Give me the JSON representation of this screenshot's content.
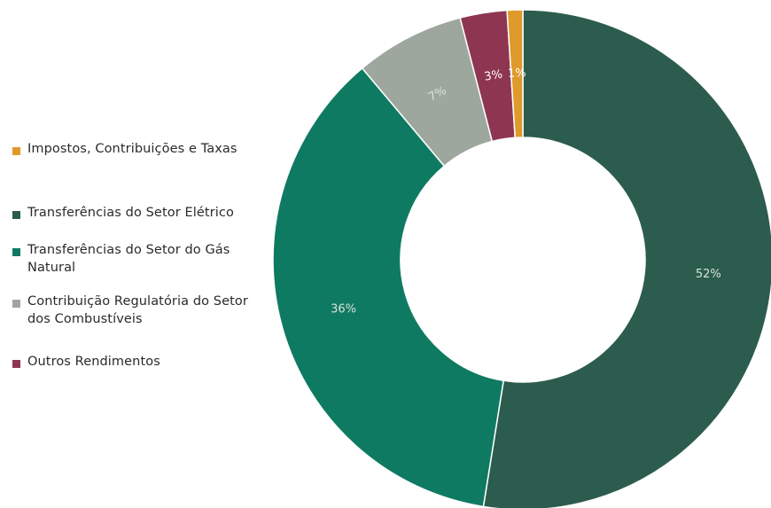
{
  "chart_data": {
    "type": "pie",
    "subtype": "donut",
    "slices": [
      {
        "label": "Transferências do Setor Elétrico",
        "value": 52,
        "display": "52%",
        "color": "#2c5c4d"
      },
      {
        "label": "Transferências do Setor do Gás Natural",
        "value": 36,
        "display": "36%",
        "color": "#0f7a62"
      },
      {
        "label": "Contribuição Regulatória do Setor dos Combustíveis",
        "value": 7,
        "display": "7%",
        "color": "#9ea79d"
      },
      {
        "label": "Outros Rendimentos",
        "value": 3,
        "display": "3%",
        "color": "#8e3651"
      },
      {
        "label": "Impostos, Contribuições e Taxas",
        "value": 1,
        "display": "1%",
        "color": "#df9a2c"
      }
    ],
    "legend": [
      {
        "label": "Impostos, Contribuições e Taxas",
        "color": "#df9a2c"
      },
      {
        "label": "Transferências do Setor Elétrico",
        "color": "#2c5c4d"
      },
      {
        "label": "Transferências do Setor do Gás Natural",
        "color": "#0f7a62"
      },
      {
        "label": "Contribuição Regulatória do Setor dos Combustíveis",
        "color": "#9ea79d"
      },
      {
        "label": "Outros Rendimentos",
        "color": "#8e3651"
      }
    ],
    "legend_position": "left"
  }
}
